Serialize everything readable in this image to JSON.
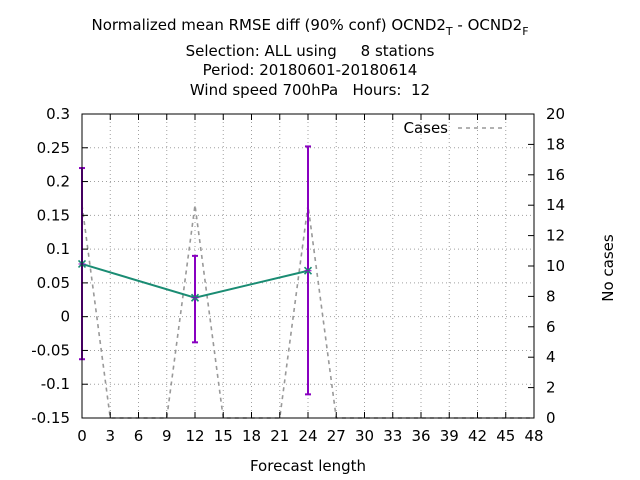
{
  "title": {
    "line1_main": "Normalized mean RMSE diff (90% conf) OCND2",
    "line1_sub1": "T",
    "line1_mid": " - OCND2",
    "line1_sub2": "F",
    "line2": "Selection: ALL using     8 stations",
    "line3": "Period: 20180601-20180614",
    "line4": "Wind speed 700hPa   Hours:  12"
  },
  "chart_data": {
    "type": "line",
    "xlabel": "Forecast length",
    "ylabel": "",
    "y2label": "No cases",
    "xlim": [
      0,
      48
    ],
    "ylim": [
      -0.15,
      0.3
    ],
    "y2lim": [
      0,
      20
    ],
    "x_ticks": [
      "0",
      "3",
      "6",
      "9",
      "12",
      "15",
      "18",
      "21",
      "24",
      "27",
      "30",
      "33",
      "36",
      "39",
      "42",
      "45",
      "48"
    ],
    "y_ticks": [
      "0.3",
      "0.25",
      "0.2",
      "0.15",
      "0.1",
      "0.05",
      "0",
      "-0.05",
      "-0.1",
      "-0.15"
    ],
    "y2_ticks": [
      "20",
      "18",
      "16",
      "14",
      "12",
      "10",
      "8",
      "6",
      "4",
      "2",
      "0"
    ],
    "grid": true,
    "legend_position": "top-right",
    "series": [
      {
        "role": "mean-diff",
        "x": [
          0,
          12,
          24
        ],
        "y": [
          0.078,
          0.028,
          0.068
        ],
        "err_low": [
          -0.063,
          -0.038,
          -0.115
        ],
        "err_high": [
          0.22,
          0.09,
          0.252
        ],
        "color": "#1a8c73",
        "errcolor": "#8800c0"
      },
      {
        "name": "Cases",
        "axis": "y2",
        "x": [
          0,
          3,
          6,
          9,
          12,
          15,
          18,
          21,
          24,
          27,
          30,
          33,
          36,
          39,
          42,
          45,
          48
        ],
        "y": [
          14,
          0,
          0,
          0,
          14,
          0,
          0,
          0,
          14,
          0,
          0,
          0,
          0,
          0,
          0,
          0,
          0
        ],
        "color": "#999999"
      }
    ]
  }
}
